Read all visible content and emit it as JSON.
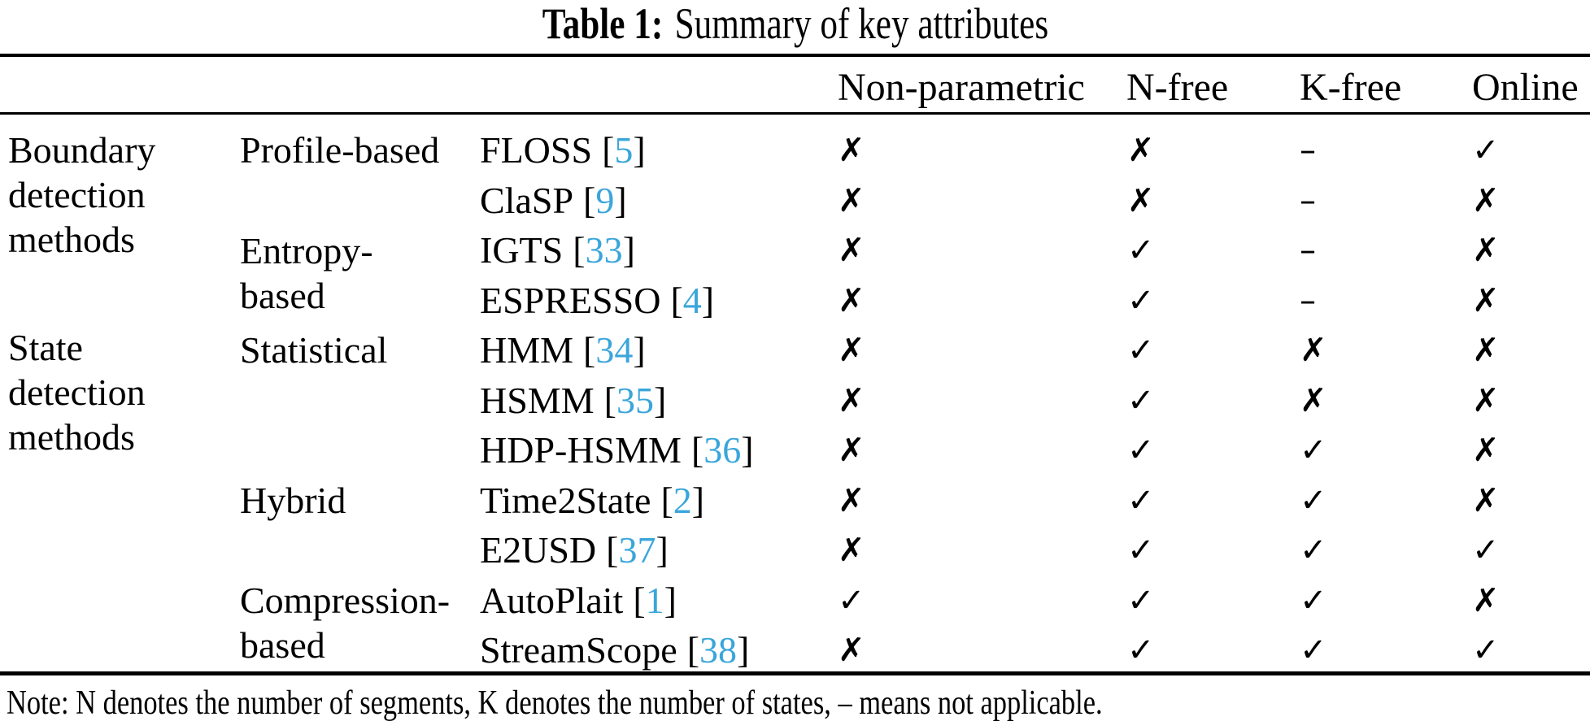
{
  "page": {
    "title": {
      "label": "Table 1:",
      "caption": "Summary of key attributes"
    },
    "note": "Note: N denotes the number of segments, K denotes the number of states, – means not applicable."
  },
  "table": {
    "columns": [
      "Non-parametric",
      "N-free",
      "K-free",
      "Online"
    ],
    "cite_open": "[",
    "cite_close": "]",
    "groups": [
      {
        "lines": [
          "Boundary",
          "detection",
          "methods"
        ]
      },
      {
        "lines": [
          "State",
          "detection",
          "methods"
        ]
      }
    ],
    "categories": [
      {
        "lines": [
          "Profile-based",
          ""
        ]
      },
      {
        "lines": [
          "Entropy-",
          "based"
        ]
      },
      {
        "lines": [
          "Statistical",
          ""
        ]
      },
      {
        "lines": [
          "Hybrid",
          ""
        ]
      },
      {
        "lines": [
          "Compression-",
          "based"
        ]
      }
    ],
    "rows": [
      {
        "method": "FLOSS",
        "cite": "5",
        "marks": [
          "✗",
          "✗",
          "–",
          "✓"
        ]
      },
      {
        "method": "ClaSP",
        "cite": "9",
        "marks": [
          "✗",
          "✗",
          "–",
          "✗"
        ]
      },
      {
        "method": "IGTS",
        "cite": "33",
        "marks": [
          "✗",
          "✓",
          "–",
          "✗"
        ]
      },
      {
        "method": "ESPRESSO",
        "cite": "4",
        "marks": [
          "✗",
          "✓",
          "–",
          "✗"
        ]
      },
      {
        "method": "HMM",
        "cite": "34",
        "marks": [
          "✗",
          "✓",
          "✗",
          "✗"
        ]
      },
      {
        "method": "HSMM",
        "cite": "35",
        "marks": [
          "✗",
          "✓",
          "✗",
          "✗"
        ]
      },
      {
        "method": "HDP-HSMM",
        "cite": "36",
        "marks": [
          "✗",
          "✓",
          "✓",
          "✗"
        ]
      },
      {
        "method": "Time2State",
        "cite": "2",
        "marks": [
          "✗",
          "✓",
          "✓",
          "✗"
        ]
      },
      {
        "method": "E2USD",
        "cite": "37",
        "marks": [
          "✗",
          "✓",
          "✓",
          "✓"
        ]
      },
      {
        "method": "AutoPlait",
        "cite": "1",
        "marks": [
          "✓",
          "✓",
          "✓",
          "✗"
        ]
      },
      {
        "method": "StreamScope",
        "cite": "38",
        "marks": [
          "✗",
          "✓",
          "✓",
          "✓"
        ]
      }
    ]
  },
  "colors": {
    "citation_blue": "#3AA6DB",
    "text_black": "#000000",
    "rule_black": "#000000"
  }
}
